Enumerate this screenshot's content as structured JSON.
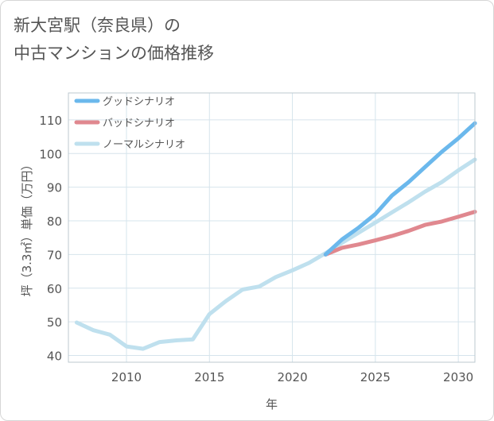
{
  "title": {
    "line1": "新大宮駅（奈良県）の",
    "line2": "中古マンションの価格推移"
  },
  "colors": {
    "good": "#6bb8ec",
    "bad": "#e0888f",
    "normal": "#bfe0ee",
    "grid": "#d6e4ec",
    "axis": "#bcc9cf"
  },
  "chart_data": {
    "type": "line",
    "title": "新大宮駅（奈良県）の中古マンションの価格推移",
    "xlabel": "年",
    "ylabel": "坪（3.3㎡）単価（万円）",
    "xlim": [
      2006.5,
      2031
    ],
    "ylim": [
      38,
      118
    ],
    "xticks": [
      2010,
      2015,
      2020,
      2025,
      2030
    ],
    "yticks": [
      40,
      50,
      60,
      70,
      80,
      90,
      100,
      110
    ],
    "grid": true,
    "legend_position": "top-left",
    "series": [
      {
        "name": "グッドシナリオ",
        "key": "good",
        "x": [
          2022,
          2023,
          2024,
          2025,
          2026,
          2027,
          2028,
          2029,
          2030,
          2031
        ],
        "y": [
          70.0,
          74.5,
          78.0,
          82.0,
          87.5,
          91.5,
          96.0,
          100.5,
          104.5,
          109.0
        ]
      },
      {
        "name": "バッドシナリオ",
        "key": "bad",
        "x": [
          2022,
          2023,
          2024,
          2025,
          2026,
          2027,
          2028,
          2029,
          2030,
          2031
        ],
        "y": [
          70.0,
          72.0,
          73.0,
          74.2,
          75.5,
          77.0,
          78.8,
          79.8,
          81.2,
          82.7
        ]
      },
      {
        "name": "ノーマルシナリオ",
        "key": "normal",
        "x": [
          2007,
          2008,
          2009,
          2010,
          2011,
          2012,
          2013,
          2014,
          2015,
          2016,
          2017,
          2018,
          2019,
          2020,
          2021,
          2022,
          2023,
          2024,
          2025,
          2026,
          2027,
          2028,
          2029,
          2030,
          2031
        ],
        "y": [
          49.8,
          47.5,
          46.2,
          42.7,
          42.0,
          44.0,
          44.5,
          44.8,
          52.3,
          56.2,
          59.6,
          60.5,
          63.3,
          65.3,
          67.5,
          70.4,
          73.5,
          76.5,
          79.5,
          82.5,
          85.5,
          88.7,
          91.5,
          95.0,
          98.2
        ]
      }
    ]
  }
}
